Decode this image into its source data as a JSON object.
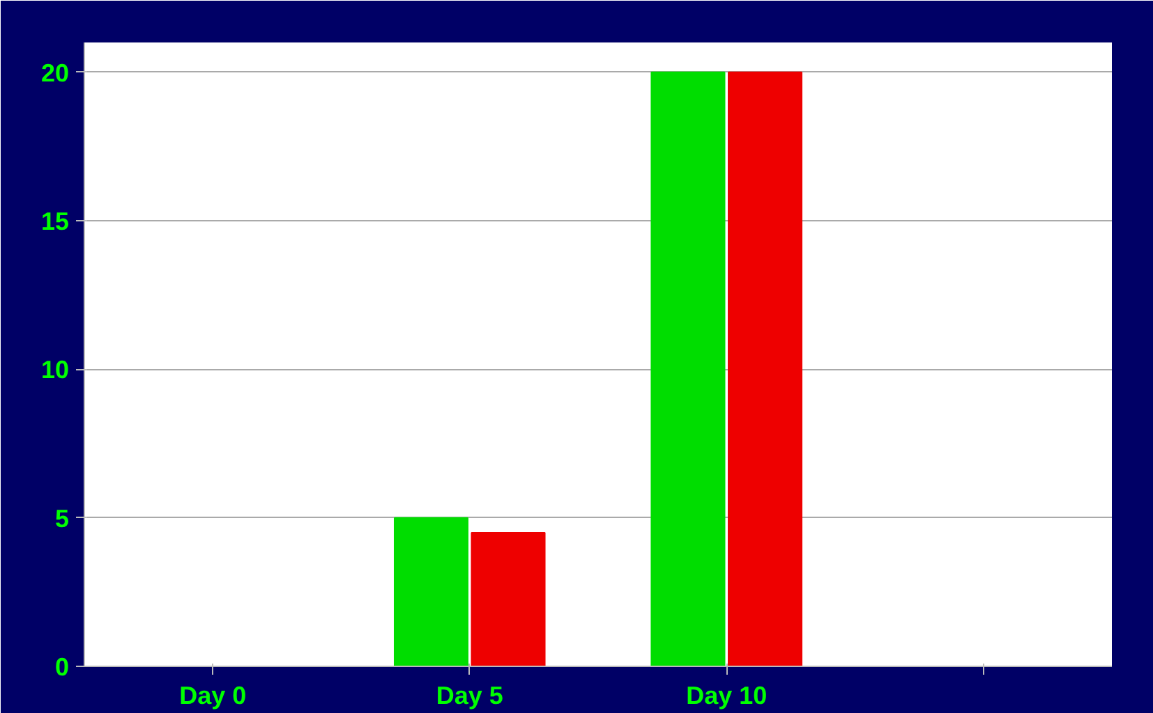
{
  "chart_data": {
    "type": "bar",
    "categories": [
      "Day 0",
      "Day 5",
      "Day 10",
      null
    ],
    "series": [
      {
        "color": "#00dd00",
        "values": [
          0,
          5,
          20,
          null
        ]
      },
      {
        "color": "#ee0000",
        "values": [
          0,
          4.5,
          20,
          null
        ]
      }
    ],
    "ylim": [
      0,
      21
    ],
    "yticks": [
      0,
      5,
      10,
      15,
      20
    ],
    "grid": "y"
  }
}
